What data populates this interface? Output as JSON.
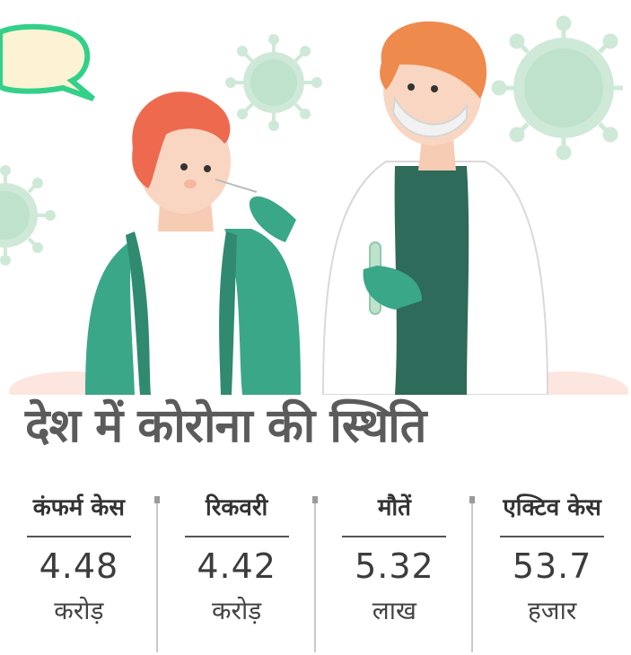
{
  "headline": "देश में कोरोना की स्थिति",
  "stats": [
    {
      "label": "कंफर्म केस",
      "value": "4.48",
      "unit": "करोड़"
    },
    {
      "label": "रिकवरी",
      "value": "4.42",
      "unit": "करोड़"
    },
    {
      "label": "मौतें",
      "value": "5.32",
      "unit": "लाख"
    },
    {
      "label": "एक्टिव केस",
      "value": "53.7",
      "unit": "हजार"
    }
  ],
  "colors": {
    "teal": "#3a9b82",
    "dark_green": "#2f6b5a",
    "hair": "#ee6a4f",
    "virus": "#c9e8d4",
    "speech_bubble_border": "#33d08a",
    "headline_text": "#5b5b5b"
  },
  "icons": [
    "speech-bubble-icon",
    "virus-icon"
  ]
}
